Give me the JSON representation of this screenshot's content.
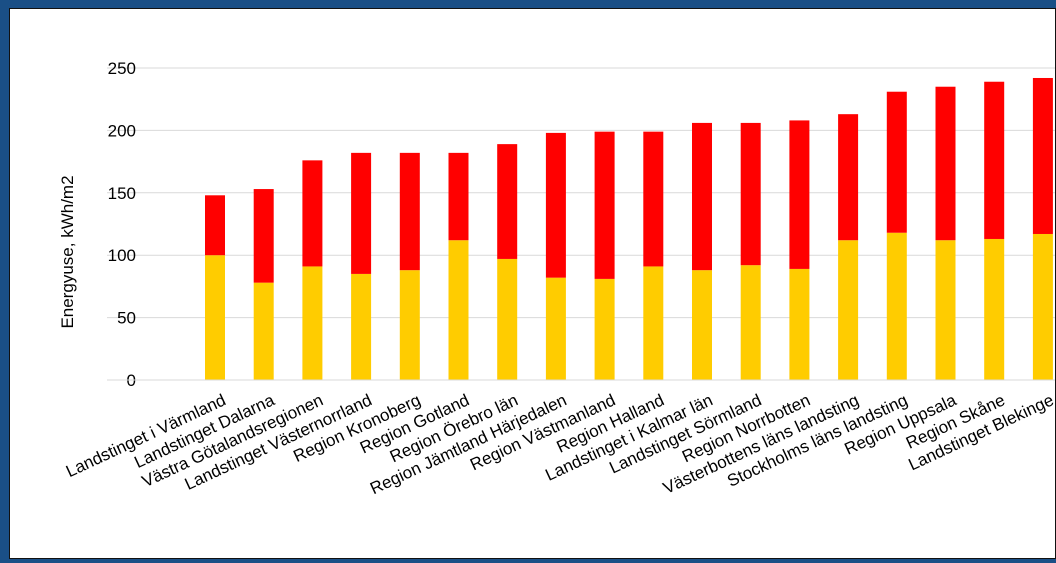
{
  "chart_data": {
    "type": "bar",
    "stacked": true,
    "ylabel": "Energyuse,  kWh/m2",
    "xlabel": "",
    "title": "",
    "ylim": [
      0,
      250
    ],
    "yticks": [
      0,
      50,
      100,
      150,
      200,
      250
    ],
    "grid": true,
    "legend": "none",
    "categories": [
      "Landstinget i Värmland",
      "Landstinget Dalarna",
      "Västra Götalandsregionen",
      "Landstinget Västernorrland",
      "Region Kronoberg",
      "Region Gotland",
      "Region Örebro län",
      "Region Jämtland Härjedalen",
      "Region Västmanland",
      "Region Halland",
      "Landstinget i Kalmar län",
      "Landstinget Sörmland",
      "Region Norrbotten",
      "Västerbottens läns landsting",
      "Stockholms läns landsting",
      "Region Uppsala",
      "Region Skåne",
      "Landstinget Blekinge"
    ],
    "series": [
      {
        "color": "#ffcc00",
        "values": [
          100,
          78,
          91,
          85,
          88,
          112,
          97,
          82,
          81,
          91,
          88,
          92,
          89,
          112,
          118,
          112,
          113,
          117
        ]
      },
      {
        "color": "#ff0000",
        "values": [
          48,
          75,
          85,
          97,
          94,
          70,
          92,
          116,
          118,
          108,
          118,
          114,
          119,
          101,
          113,
          123,
          126,
          125
        ]
      }
    ]
  },
  "colors": {
    "background_outer": "#1a4f86",
    "grid": "#d9d9d9"
  }
}
